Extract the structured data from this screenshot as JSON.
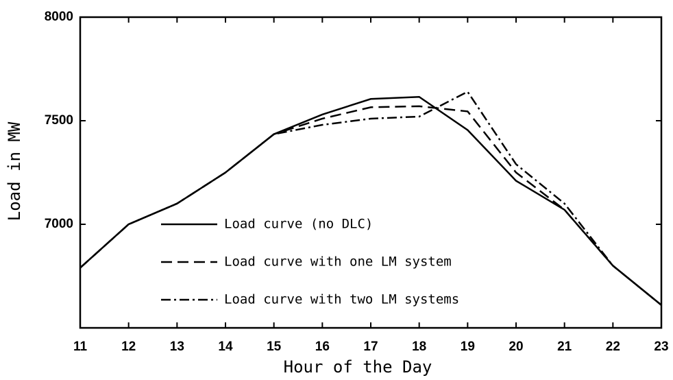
{
  "chart_data": {
    "type": "line",
    "xlabel": "Hour of the Day",
    "ylabel": "Load in MW",
    "x": [
      11,
      12,
      13,
      14,
      15,
      16,
      17,
      18,
      19,
      20,
      21,
      22,
      23
    ],
    "series": [
      {
        "name": "Load curve (no DLC)",
        "color": "#000000",
        "dash": "solid",
        "values": [
          6790,
          7000,
          7100,
          7250,
          7435,
          7530,
          7605,
          7615,
          7455,
          7210,
          7070,
          6800,
          6610
        ]
      },
      {
        "name": "Load curve with one LM system",
        "color": "#000000",
        "dash": "dashed",
        "values": [
          6790,
          7000,
          7100,
          7250,
          7435,
          7510,
          7565,
          7570,
          7545,
          7250,
          7070,
          6800,
          6610
        ]
      },
      {
        "name": "Load curve with two LM systems",
        "color": "#000000",
        "dash": "dashdot",
        "values": [
          6790,
          7000,
          7100,
          7250,
          7435,
          7480,
          7510,
          7520,
          7640,
          7290,
          7100,
          6800,
          6610
        ]
      }
    ],
    "xlim": [
      11,
      23
    ],
    "xticks": [
      11,
      12,
      13,
      14,
      15,
      16,
      17,
      18,
      19,
      20,
      21,
      22,
      23
    ],
    "ylim": [
      6500,
      8000
    ],
    "yticks": [
      7000,
      7500,
      8000
    ],
    "grid": false,
    "legend": "lower left"
  }
}
